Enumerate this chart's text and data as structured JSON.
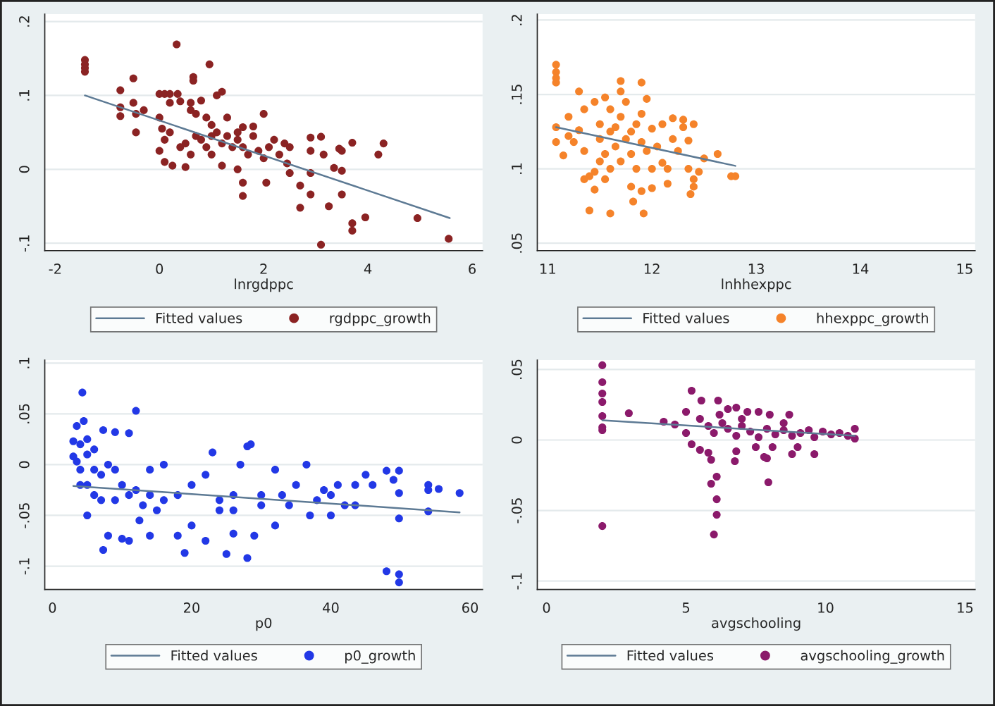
{
  "chart_data": [
    {
      "type": "scatter",
      "xlabel": "lnrgdppc",
      "xlim": [
        -2.2,
        6.2
      ],
      "ylim": [
        -0.11,
        0.21
      ],
      "xticks": [
        -2,
        0,
        2,
        4,
        6
      ],
      "yticks": [
        {
          "value": -0.1,
          "label": "-.1"
        },
        0,
        {
          "value": 0.1,
          "label": ".1"
        },
        {
          "value": 0.2,
          "label": ".2"
        }
      ],
      "grid": "y",
      "legend": "bottom",
      "series": [
        {
          "name": "Fitted values",
          "type": "line",
          "color": "#5d7a94",
          "x": [
            -1.43,
            5.57
          ],
          "values": [
            0.1,
            -0.066
          ]
        },
        {
          "name": "rgdppc_growth",
          "marker": "circle",
          "color": "#8b2323",
          "x": [
            -1.43,
            -1.43,
            -1.43,
            -1.43,
            0.33,
            0.96,
            0.65,
            0.65,
            -0.75,
            -0.75,
            -0.75,
            -0.5,
            -0.5,
            -0.45,
            -0.45,
            -0.3,
            0,
            0.1,
            0.2,
            0.35,
            0.2,
            0.4,
            0.6,
            0.8,
            0.6,
            0,
            0.05,
            0.1,
            0.2,
            0,
            0.1,
            0.25,
            0.5,
            0.6,
            0.7,
            0.9,
            1,
            1.1,
            0.8,
            0.9,
            1,
            1.2,
            1.3,
            1.4,
            1.5,
            1.6,
            1.7,
            1.8,
            1.9,
            1.2,
            1.1,
            1.3,
            1.5,
            1.6,
            1.8,
            2,
            2,
            2.1,
            2.2,
            2.3,
            2.4,
            2.5,
            1.2,
            1.5,
            1.6,
            1.6,
            2.05,
            2.5,
            2.7,
            2.7,
            2.9,
            2.9,
            2.9,
            2.9,
            3.1,
            3.15,
            3.1,
            3.25,
            3.35,
            3.45,
            3.5,
            3.5,
            3.5,
            3.7,
            3.7,
            3.7,
            3.95,
            4.2,
            4.3,
            4.95,
            5.55,
            2.45,
            1,
            0.7,
            0.5,
            0.4
          ],
          "values": [
            0.148,
            0.142,
            0.137,
            0.132,
            0.169,
            0.142,
            0.125,
            0.12,
            0.107,
            0.084,
            0.072,
            0.123,
            0.09,
            0.075,
            0.05,
            0.08,
            0.102,
            0.102,
            0.102,
            0.102,
            0.09,
            0.092,
            0.09,
            0.093,
            0.08,
            0.07,
            0.055,
            0.04,
            0.05,
            0.025,
            0.01,
            0.005,
            0.003,
            0.02,
            0.075,
            0.07,
            0.06,
            0.05,
            0.04,
            0.03,
            0.02,
            0.035,
            0.045,
            0.03,
            0.04,
            0.03,
            0.02,
            0.045,
            0.025,
            0.105,
            0.1,
            0.07,
            0.05,
            0.057,
            0.058,
            0.075,
            0.015,
            0.03,
            0.04,
            0.02,
            0.035,
            0.03,
            0.005,
            0,
            -0.018,
            -0.036,
            -0.018,
            -0.005,
            -0.022,
            -0.052,
            0.043,
            0.025,
            -0.005,
            -0.034,
            0.044,
            0.02,
            -0.102,
            -0.05,
            0.002,
            0.028,
            0.025,
            -0.002,
            -0.034,
            0.036,
            -0.073,
            -0.083,
            -0.065,
            0.02,
            0.035,
            -0.066,
            -0.094,
            0.008,
            0.045,
            0.045,
            0.035,
            0.03
          ]
        }
      ]
    },
    {
      "type": "scatter",
      "xlabel": "lnhhexppc",
      "xlim": [
        10.9,
        15.1
      ],
      "ylim": [
        0.045,
        0.204
      ],
      "xticks": [
        11,
        12,
        13,
        14,
        15
      ],
      "yticks": [
        {
          "value": 0.05,
          "label": ".05"
        },
        {
          "value": 0.1,
          "label": ".1"
        },
        {
          "value": 0.15,
          "label": ".15"
        },
        {
          "value": 0.2,
          "label": ".2"
        }
      ],
      "grid": "y",
      "legend": "bottom",
      "series": [
        {
          "name": "Fitted values",
          "type": "line",
          "color": "#5d7a94",
          "x": [
            11.08,
            12.8
          ],
          "values": [
            0.128,
            0.102
          ]
        },
        {
          "name": "hhexppc_growth",
          "marker": "circle",
          "color": "#f5832a",
          "x": [
            11.08,
            11.08,
            11.08,
            11.08,
            11.08,
            11.08,
            11.15,
            11.2,
            11.2,
            11.3,
            11.35,
            11.3,
            11.35,
            11.4,
            11.35,
            11.45,
            11.45,
            11.4,
            11.45,
            11.5,
            11.5,
            11.55,
            11.55,
            11.6,
            11.6,
            11.6,
            11.6,
            11.55,
            11.65,
            11.7,
            11.7,
            11.7,
            11.7,
            11.75,
            11.75,
            11.8,
            11.8,
            11.85,
            11.85,
            11.82,
            11.9,
            11.9,
            11.9,
            11.9,
            11.92,
            11.95,
            12,
            12,
            12,
            12.05,
            12.1,
            12.1,
            12.15,
            12.15,
            12.2,
            12.2,
            12.25,
            12.3,
            12.3,
            12.35,
            12.35,
            12.37,
            12.4,
            12.4,
            12.45,
            12.5,
            12.4,
            12.63,
            12.76,
            12.8,
            11.25,
            11.5,
            11.65,
            11.8,
            11.95
          ],
          "values": [
            0.17,
            0.165,
            0.161,
            0.158,
            0.128,
            0.118,
            0.109,
            0.122,
            0.135,
            0.152,
            0.14,
            0.126,
            0.112,
            0.095,
            0.093,
            0.098,
            0.086,
            0.072,
            0.145,
            0.13,
            0.12,
            0.148,
            0.11,
            0.14,
            0.125,
            0.1,
            0.07,
            0.093,
            0.115,
            0.159,
            0.152,
            0.135,
            0.105,
            0.145,
            0.12,
            0.11,
            0.088,
            0.13,
            0.1,
            0.078,
            0.158,
            0.137,
            0.118,
            0.085,
            0.07,
            0.147,
            0.127,
            0.1,
            0.087,
            0.115,
            0.13,
            0.104,
            0.1,
            0.09,
            0.134,
            0.12,
            0.112,
            0.133,
            0.128,
            0.119,
            0.1,
            0.083,
            0.093,
            0.088,
            0.098,
            0.107,
            0.13,
            0.11,
            0.095,
            0.095,
            0.118,
            0.105,
            0.128,
            0.125,
            0.112
          ]
        }
      ]
    },
    {
      "type": "scatter",
      "xlabel": "p0",
      "xlim": [
        -1.1,
        61.8
      ],
      "ylim": [
        -0.123,
        0.103
      ],
      "xticks": [
        0,
        20,
        40,
        60
      ],
      "yticks": [
        {
          "value": -0.1,
          "label": "-.1"
        },
        {
          "value": -0.05,
          "label": "-.05"
        },
        0,
        {
          "value": 0.05,
          "label": ".05"
        },
        {
          "value": 0.1,
          "label": ".1"
        }
      ],
      "grid": "y",
      "legend": "bottom",
      "series": [
        {
          "name": "Fitted values",
          "type": "line",
          "color": "#5d7a94",
          "x": [
            3,
            58.5
          ],
          "values": [
            -0.021,
            -0.047
          ]
        },
        {
          "name": "p0_growth",
          "marker": "circle",
          "color": "#2238e6",
          "x": [
            4.3,
            12,
            3.5,
            4.5,
            7.3,
            9,
            11,
            3,
            4,
            5,
            6,
            3,
            3.5,
            4,
            5,
            6,
            7,
            5,
            4,
            6,
            8,
            9,
            10,
            7,
            9,
            11,
            12,
            13,
            14,
            15,
            16,
            5,
            8,
            7.3,
            10,
            11,
            12.5,
            14,
            18,
            19,
            20,
            22,
            23,
            24,
            25,
            26,
            28,
            28.5,
            28,
            29,
            27,
            30,
            32,
            33,
            35,
            36.5,
            37,
            38,
            39,
            40,
            41,
            40,
            42,
            43.5,
            43.5,
            45,
            46,
            48,
            48,
            49,
            49.8,
            49.8,
            49.8,
            49.8,
            49.8,
            54,
            54,
            54,
            55.5,
            58.5,
            20,
            22,
            24,
            26,
            18,
            16,
            14,
            30,
            32,
            34,
            26
          ],
          "values": [
            0.071,
            0.053,
            0.038,
            0.043,
            0.034,
            0.032,
            0.031,
            0.023,
            0.02,
            0.025,
            0.015,
            0.008,
            0.003,
            -0.005,
            0.01,
            -0.005,
            -0.01,
            -0.02,
            -0.02,
            -0.03,
            0,
            -0.005,
            -0.02,
            -0.035,
            -0.035,
            -0.03,
            -0.025,
            -0.04,
            -0.03,
            -0.045,
            -0.035,
            -0.05,
            -0.07,
            -0.084,
            -0.073,
            -0.075,
            -0.055,
            -0.07,
            -0.07,
            -0.087,
            -0.06,
            -0.075,
            0.012,
            -0.045,
            -0.088,
            -0.068,
            0.018,
            0.02,
            -0.092,
            -0.07,
            0,
            -0.03,
            -0.005,
            -0.03,
            -0.02,
            0,
            -0.05,
            -0.035,
            -0.025,
            -0.03,
            -0.02,
            -0.05,
            -0.04,
            -0.02,
            -0.04,
            -0.01,
            -0.02,
            -0.006,
            -0.105,
            -0.015,
            -0.006,
            -0.028,
            -0.053,
            -0.108,
            -0.116,
            -0.02,
            -0.025,
            -0.046,
            -0.024,
            -0.028,
            -0.02,
            -0.01,
            -0.035,
            -0.03,
            -0.03,
            0,
            -0.005,
            -0.04,
            -0.06,
            -0.04,
            -0.045
          ]
        }
      ]
    },
    {
      "type": "scatter",
      "xlabel": "avgschooling",
      "xlim": [
        -0.33,
        15.36
      ],
      "ylim": [
        -0.106,
        0.0567
      ],
      "xticks": [
        0,
        5,
        10,
        15
      ],
      "yticks": [
        {
          "value": -0.1,
          "label": "-.1"
        },
        {
          "value": -0.05,
          "label": "-.05"
        },
        0,
        {
          "value": 0.05,
          "label": ".05"
        }
      ],
      "grid": "y",
      "legend": "bottom",
      "series": [
        {
          "name": "Fitted values",
          "type": "line",
          "color": "#5d7a94",
          "x": [
            2,
            11.05
          ],
          "values": [
            0.014,
            0.003
          ]
        },
        {
          "name": "avgschooling_growth",
          "marker": "circle",
          "color": "#8b1a6b",
          "x": [
            2,
            2,
            2,
            2,
            2,
            2,
            2,
            2,
            2.95,
            4.2,
            4.6,
            5,
            5.2,
            5.55,
            6.15,
            6.5,
            6.8,
            7.2,
            7.6,
            8,
            8.7,
            5.2,
            5.5,
            5.8,
            5.9,
            5.9,
            6,
            6.1,
            6.1,
            6.1,
            6.75,
            6.8,
            7.5,
            7.8,
            7.9,
            7.95,
            8.1,
            8.8,
            9.6,
            5,
            5.5,
            5.8,
            6,
            6.3,
            6.5,
            6.8,
            7,
            7.3,
            7.6,
            7.9,
            8.2,
            8.5,
            8.8,
            9.1,
            9.4,
            9.6,
            9.9,
            10.2,
            10.5,
            10.8,
            11.05,
            11.05,
            8.5,
            9,
            6.2,
            7
          ],
          "values": [
            0.053,
            0.041,
            0.033,
            0.027,
            0.017,
            0.009,
            0.007,
            -0.061,
            0.019,
            0.013,
            0.011,
            0.02,
            0.035,
            0.028,
            0.028,
            0.022,
            0.023,
            0.02,
            0.02,
            0.018,
            0.018,
            -0.003,
            -0.007,
            -0.009,
            -0.014,
            -0.031,
            -0.067,
            -0.026,
            -0.042,
            -0.053,
            -0.015,
            -0.008,
            -0.005,
            -0.012,
            -0.013,
            -0.03,
            -0.005,
            -0.01,
            -0.01,
            0.005,
            0.015,
            0.01,
            0.005,
            0.012,
            0.008,
            0.003,
            0.01,
            0.006,
            0.002,
            0.008,
            0.004,
            0.007,
            0.003,
            0.005,
            0.007,
            0.002,
            0.006,
            0.004,
            0.005,
            0.003,
            0.008,
            0.001,
            0.012,
            -0.005,
            0.018,
            0.015
          ]
        }
      ]
    }
  ]
}
